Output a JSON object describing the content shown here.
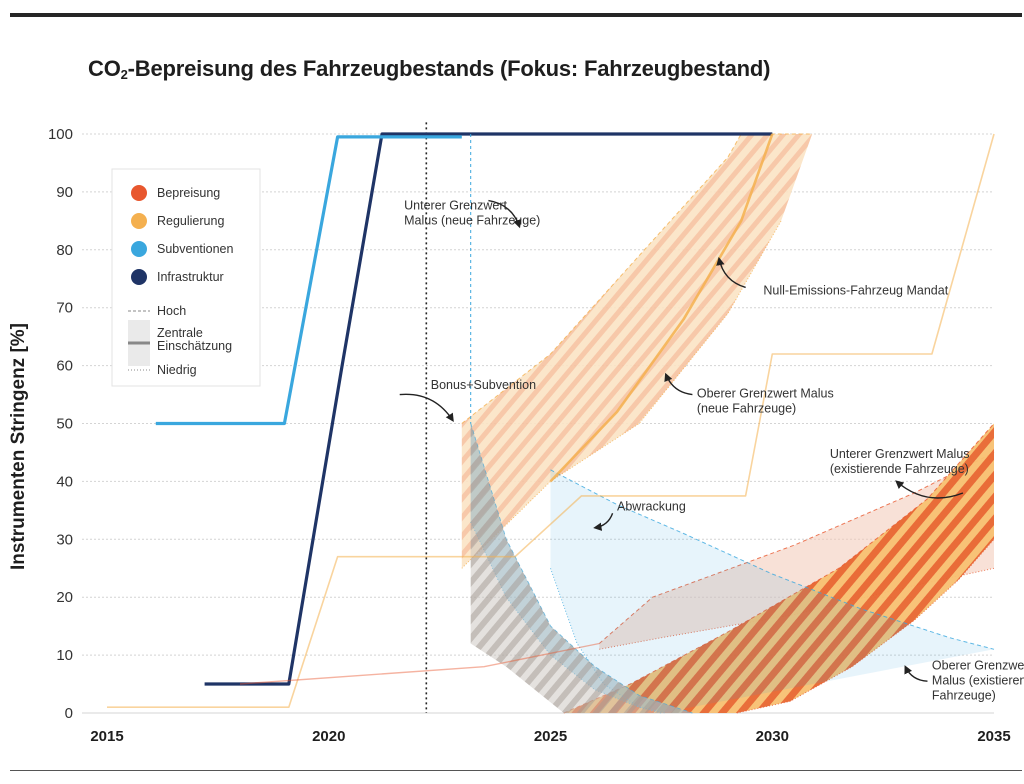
{
  "chart_data": {
    "type": "line",
    "title": "CO2-Bepreisung des Fahrzeugbestands (Fokus: Fahrzeugbestand)",
    "title_main": "CO",
    "title_sub": "2",
    "title_rest": "-Bepreisung des Fahrzeugbestands (Fokus: Fahrzeugbestand)",
    "xlabel": "",
    "ylabel": "Instrumenten Stringenz [%]",
    "xlim": [
      2015,
      2035
    ],
    "ylim": [
      0,
      100
    ],
    "x_ticks": [
      2015,
      2020,
      2025,
      2030,
      2035
    ],
    "y_ticks": [
      0,
      10,
      20,
      30,
      40,
      50,
      60,
      70,
      80,
      90,
      100
    ],
    "grid": true,
    "reference_line_x": 2022.2,
    "legend_placement": "top-left",
    "legend": {
      "categories": [
        {
          "label": "Bepreisung",
          "color": "#e8572e"
        },
        {
          "label": "Regulierung",
          "color": "#f4b04f"
        },
        {
          "label": "Subventionen",
          "color": "#3aa7de"
        },
        {
          "label": "Infrastruktur",
          "color": "#1f3466"
        }
      ],
      "estimates": [
        {
          "label": "Hoch",
          "style": "dashed"
        },
        {
          "label": "Zentrale Einschätzung",
          "lines": [
            "Zentrale",
            "Einschätzung"
          ],
          "style": "band"
        },
        {
          "label": "Niedrig",
          "style": "dotted"
        }
      ]
    },
    "series": [
      {
        "category": "Infrastruktur",
        "kind": "line",
        "points": [
          [
            2017.2,
            5
          ],
          [
            2019.1,
            5
          ],
          [
            2020.3,
            60
          ],
          [
            2021.2,
            100
          ],
          [
            2030,
            100
          ]
        ]
      },
      {
        "category": "Subventionen",
        "kind": "line",
        "points": [
          [
            2016.1,
            50
          ],
          [
            2019.0,
            50
          ],
          [
            2020.2,
            99.5
          ],
          [
            2023.0,
            99.5
          ]
        ]
      },
      {
        "category": "Regulierung",
        "kind": "line",
        "points": [
          [
            2015,
            1
          ],
          [
            2019.1,
            1
          ],
          [
            2020.2,
            27
          ],
          [
            2024.2,
            27
          ],
          [
            2025.7,
            37.5
          ],
          [
            2029.4,
            37.5
          ],
          [
            2030.0,
            62
          ],
          [
            2033.6,
            62
          ],
          [
            2035,
            100
          ]
        ]
      },
      {
        "category": "Regulierung",
        "kind": "central",
        "points": [
          [
            2025,
            40
          ],
          [
            2026.5,
            52
          ],
          [
            2028,
            68
          ],
          [
            2029.3,
            85
          ],
          [
            2030,
            100
          ]
        ]
      },
      {
        "category": "Regulierung",
        "kind": "band",
        "upper": [
          [
            2023,
            50
          ],
          [
            2025,
            62
          ],
          [
            2027,
            79
          ],
          [
            2029,
            96
          ],
          [
            2029.3,
            100
          ],
          [
            2030.9,
            100
          ]
        ],
        "lower": [
          [
            2023,
            25
          ],
          [
            2025,
            40
          ],
          [
            2027,
            50
          ],
          [
            2029,
            69
          ],
          [
            2030.2,
            85
          ]
        ]
      },
      {
        "category": "Bepreisung",
        "kind": "band",
        "upper": [
          [
            2026.1,
            12
          ],
          [
            2027.3,
            20
          ],
          [
            2030.5,
            29
          ],
          [
            2033.2,
            38
          ],
          [
            2035,
            45
          ]
        ],
        "lower": [
          [
            2026.1,
            11
          ],
          [
            2027.5,
            13
          ],
          [
            2030.5,
            17
          ],
          [
            2033.2,
            22
          ],
          [
            2035,
            25
          ]
        ]
      },
      {
        "category": "Bepreisung",
        "kind": "line",
        "points": [
          [
            2018.0,
            5
          ],
          [
            2023.5,
            8
          ],
          [
            2026.1,
            12
          ]
        ]
      },
      {
        "category": "Bepreisung",
        "kind": "band",
        "upper": [
          [
            2025.3,
            0
          ],
          [
            2026.8,
            5
          ],
          [
            2029.0,
            14
          ],
          [
            2031.5,
            25
          ],
          [
            2033.5,
            37
          ],
          [
            2035,
            50
          ]
        ],
        "lower": [
          [
            2029.2,
            0
          ],
          [
            2030.4,
            2
          ],
          [
            2031.8,
            8
          ],
          [
            2033.2,
            16
          ],
          [
            2034.2,
            23
          ],
          [
            2035,
            30
          ]
        ]
      },
      {
        "category": "Subventionen",
        "kind": "band",
        "upper": [
          [
            2023.2,
            50
          ],
          [
            2024.0,
            30
          ],
          [
            2025.0,
            15
          ],
          [
            2026.0,
            8
          ],
          [
            2027.0,
            3
          ],
          [
            2028.2,
            0
          ]
        ],
        "lower": [
          [
            2023.2,
            33
          ],
          [
            2024.0,
            20
          ],
          [
            2025.0,
            10
          ],
          [
            2026.0,
            4
          ],
          [
            2027.0,
            1
          ],
          [
            2027.6,
            0
          ]
        ]
      },
      {
        "category": "Subventionen",
        "kind": "band",
        "upper": [
          [
            2025.0,
            42
          ],
          [
            2026.5,
            36
          ],
          [
            2028.0,
            31
          ],
          [
            2030.0,
            24
          ],
          [
            2032.0,
            18
          ],
          [
            2034.0,
            13
          ],
          [
            2035,
            11
          ]
        ],
        "lower": [
          [
            2025.0,
            25
          ],
          [
            2025.6,
            12
          ],
          [
            2026.2,
            5
          ],
          [
            2027.0,
            1
          ],
          [
            2027.5,
            0
          ]
        ]
      },
      {
        "category": "Subventionen",
        "kind": "line",
        "points": [
          [
            2023.2,
            100
          ],
          [
            2023.2,
            50
          ]
        ]
      }
    ],
    "annotations": [
      {
        "label": "Unterer Grenzwert Malus (neue Fahrzeuge)",
        "lines": [
          "Unterer Grenzwert",
          "Malus (neue Fahrzeuge)"
        ],
        "x": 2021.7,
        "y": 87
      },
      {
        "label": "Null-Emissions-Fahrzeug Mandat",
        "lines": [
          "Null-Emissions-Fahrzeug Mandat"
        ],
        "x": 2029.8,
        "y": 72.3
      },
      {
        "label": "Bonus+Subvention",
        "lines": [
          "Bonus+Subvention"
        ],
        "x": 2022.3,
        "y": 56
      },
      {
        "label": "Oberer Grenzwert Malus (neue Fahrzeuge)",
        "lines": [
          "Oberer Grenzwert Malus",
          "(neue Fahrzeuge)"
        ],
        "x": 2028.3,
        "y": 54.5
      },
      {
        "label": "Unterer Grenzwert Malus (existierende Fahrzeuge)",
        "lines": [
          "Unterer Grenzwert Malus",
          "(existierende Fahrzeuge)"
        ],
        "x": 2031.3,
        "y": 44
      },
      {
        "label": "Abwrackung",
        "lines": [
          "Abwrackung"
        ],
        "x": 2026.5,
        "y": 35
      },
      {
        "label": "Oberer Grenzwert Malus (existierende Fahrzeuge)",
        "lines": [
          "Oberer Grenzwert",
          "Malus (existierende",
          "Fahrzeuge)"
        ],
        "x": 2033.6,
        "y": 7.5
      }
    ]
  }
}
